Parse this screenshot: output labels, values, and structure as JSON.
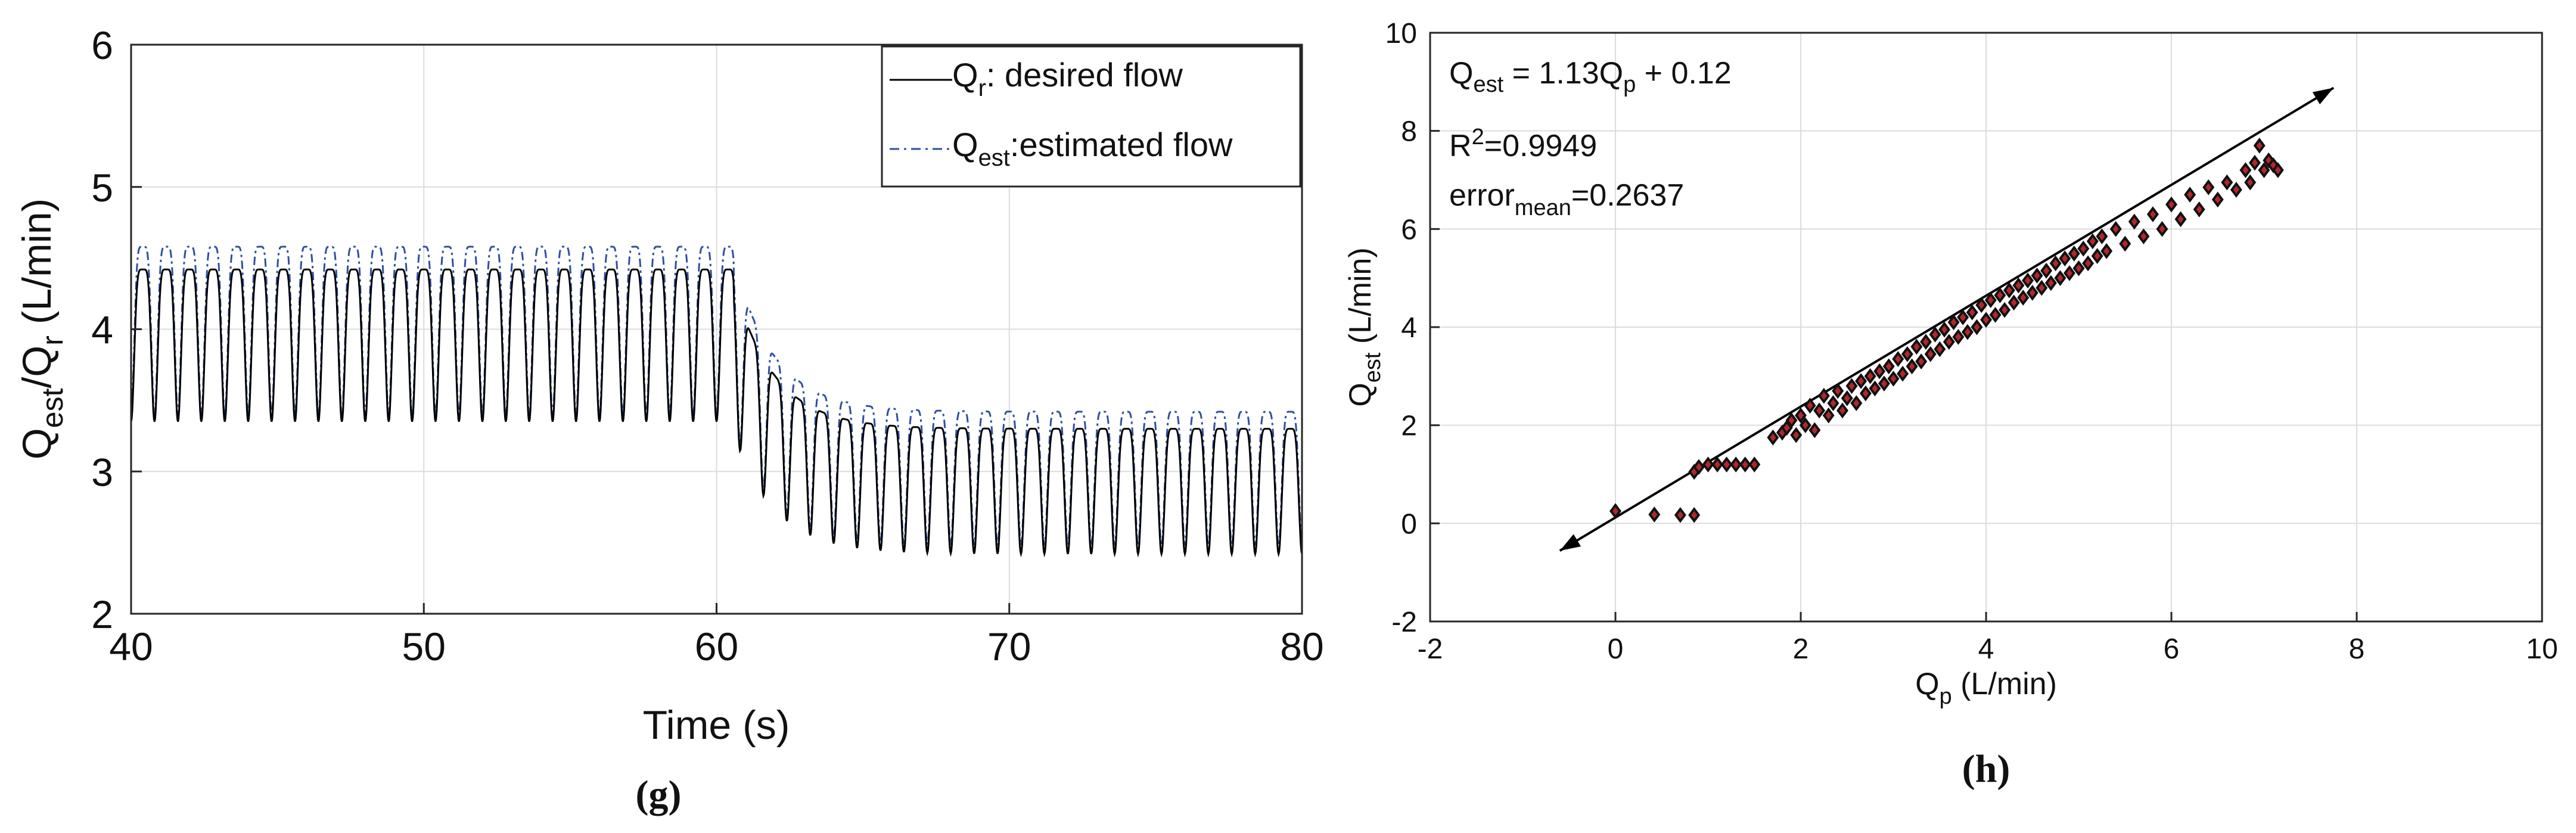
{
  "colors": {
    "axis": "#262626",
    "grid": "#dcdcdc",
    "desired": "#000000",
    "estimated": "#2f4fa3",
    "marker_fill": "#b3262b",
    "marker_edge": "#111111"
  },
  "left_caption": "(g)",
  "right_caption": "(h)",
  "chart_data": [
    {
      "id": "g",
      "type": "line",
      "xlabel": "Time (s)",
      "ylabel": {
        "main": "Q",
        "sub1": "est",
        "mid": "/Q",
        "sub2": "r",
        "end": " (L/min)"
      },
      "xlim": [
        40,
        80
      ],
      "ylim": [
        2,
        6
      ],
      "xticks": [
        40,
        50,
        60,
        70,
        80
      ],
      "yticks": [
        2,
        3,
        4,
        5,
        6
      ],
      "grid": true,
      "legend_position": "top-right",
      "oscillation_period_s": 0.8,
      "step_time_s": 60.6,
      "series": [
        {
          "name": "desired",
          "legend": {
            "main": "Q",
            "sub": "r",
            "rest": ": desired flow"
          },
          "style": "solid",
          "phase1": {
            "peak": 4.42,
            "trough": 3.35
          },
          "phase2": {
            "peak": 3.3,
            "trough": 2.42
          }
        },
        {
          "name": "estimated",
          "legend": {
            "main": "Q",
            "sub": "est",
            "rest": ":estimated flow"
          },
          "style": "dash-dot",
          "phase1": {
            "peak": 4.58,
            "trough": 3.4
          },
          "phase2": {
            "peak": 3.42,
            "trough": 2.48
          }
        }
      ]
    },
    {
      "id": "h",
      "type": "scatter",
      "xlabel": {
        "main": "Q",
        "sub": "p",
        "rest": " (L/min)"
      },
      "ylabel": {
        "main": "Q",
        "sub": "est",
        "rest": " (L/min)"
      },
      "xlim": [
        -2,
        10
      ],
      "ylim": [
        -2,
        10
      ],
      "xticks": [
        -2,
        0,
        2,
        4,
        6,
        8,
        10
      ],
      "yticks": [
        -2,
        0,
        2,
        4,
        6,
        8,
        10
      ],
      "grid": true,
      "fit": {
        "slope": 1.13,
        "intercept": 0.12,
        "x_range": [
          -0.6,
          7.75
        ]
      },
      "annotations": {
        "equation": {
          "main": "Q",
          "sub": "est",
          "rest": " = 1.13Q",
          "sub2": "p",
          "end": " + 0.12"
        },
        "r2": {
          "main": "R",
          "sup": "2",
          "rest": "=0.9949"
        },
        "error": {
          "main": "error",
          "sub": "mean",
          "rest": "=0.2637"
        }
      },
      "points": [
        [
          0,
          0.25
        ],
        [
          0.42,
          0.18
        ],
        [
          0.7,
          0.17
        ],
        [
          0.85,
          0.17
        ],
        [
          0.85,
          1.05
        ],
        [
          0.9,
          1.15
        ],
        [
          1.0,
          1.2
        ],
        [
          1.1,
          1.2
        ],
        [
          1.2,
          1.2
        ],
        [
          1.3,
          1.2
        ],
        [
          1.4,
          1.2
        ],
        [
          1.5,
          1.2
        ],
        [
          1.7,
          1.75
        ],
        [
          1.8,
          1.85
        ],
        [
          1.85,
          1.95
        ],
        [
          1.9,
          2.1
        ],
        [
          1.95,
          1.8
        ],
        [
          2.0,
          2.2
        ],
        [
          2.05,
          2.0
        ],
        [
          2.1,
          2.4
        ],
        [
          2.15,
          1.9
        ],
        [
          2.2,
          2.3
        ],
        [
          2.25,
          2.6
        ],
        [
          2.3,
          2.2
        ],
        [
          2.35,
          2.45
        ],
        [
          2.4,
          2.7
        ],
        [
          2.45,
          2.3
        ],
        [
          2.5,
          2.55
        ],
        [
          2.55,
          2.8
        ],
        [
          2.6,
          2.45
        ],
        [
          2.65,
          2.9
        ],
        [
          2.7,
          2.65
        ],
        [
          2.75,
          3.0
        ],
        [
          2.8,
          2.75
        ],
        [
          2.85,
          3.1
        ],
        [
          2.9,
          2.85
        ],
        [
          2.95,
          3.2
        ],
        [
          3.0,
          2.95
        ],
        [
          3.05,
          3.35
        ],
        [
          3.1,
          3.05
        ],
        [
          3.15,
          3.45
        ],
        [
          3.2,
          3.2
        ],
        [
          3.25,
          3.6
        ],
        [
          3.3,
          3.3
        ],
        [
          3.35,
          3.7
        ],
        [
          3.4,
          3.45
        ],
        [
          3.45,
          3.85
        ],
        [
          3.5,
          3.55
        ],
        [
          3.55,
          3.95
        ],
        [
          3.6,
          3.7
        ],
        [
          3.65,
          4.1
        ],
        [
          3.7,
          3.8
        ],
        [
          3.75,
          4.2
        ],
        [
          3.8,
          3.9
        ],
        [
          3.85,
          4.3
        ],
        [
          3.9,
          4.0
        ],
        [
          3.95,
          4.45
        ],
        [
          4.0,
          4.15
        ],
        [
          4.05,
          4.55
        ],
        [
          4.1,
          4.25
        ],
        [
          4.15,
          4.65
        ],
        [
          4.2,
          4.35
        ],
        [
          4.25,
          4.75
        ],
        [
          4.3,
          4.5
        ],
        [
          4.35,
          4.85
        ],
        [
          4.4,
          4.6
        ],
        [
          4.45,
          4.95
        ],
        [
          4.5,
          4.7
        ],
        [
          4.55,
          5.05
        ],
        [
          4.6,
          4.8
        ],
        [
          4.65,
          5.15
        ],
        [
          4.7,
          4.9
        ],
        [
          4.75,
          5.3
        ],
        [
          4.8,
          5.0
        ],
        [
          4.85,
          5.4
        ],
        [
          4.9,
          5.1
        ],
        [
          4.95,
          5.5
        ],
        [
          5.0,
          5.2
        ],
        [
          5.05,
          5.6
        ],
        [
          5.1,
          5.3
        ],
        [
          5.15,
          5.75
        ],
        [
          5.2,
          5.45
        ],
        [
          5.25,
          5.85
        ],
        [
          5.3,
          5.55
        ],
        [
          5.4,
          6.0
        ],
        [
          5.5,
          5.7
        ],
        [
          5.6,
          6.15
        ],
        [
          5.7,
          5.85
        ],
        [
          5.8,
          6.3
        ],
        [
          5.9,
          6.0
        ],
        [
          6.0,
          6.5
        ],
        [
          6.1,
          6.2
        ],
        [
          6.2,
          6.7
        ],
        [
          6.3,
          6.4
        ],
        [
          6.4,
          6.85
        ],
        [
          6.5,
          6.6
        ],
        [
          6.6,
          6.95
        ],
        [
          6.7,
          6.8
        ],
        [
          6.8,
          7.2
        ],
        [
          6.85,
          6.95
        ],
        [
          6.9,
          7.35
        ],
        [
          6.95,
          7.7
        ],
        [
          7.0,
          7.2
        ],
        [
          7.05,
          7.4
        ],
        [
          7.1,
          7.3
        ],
        [
          7.15,
          7.2
        ]
      ]
    }
  ]
}
